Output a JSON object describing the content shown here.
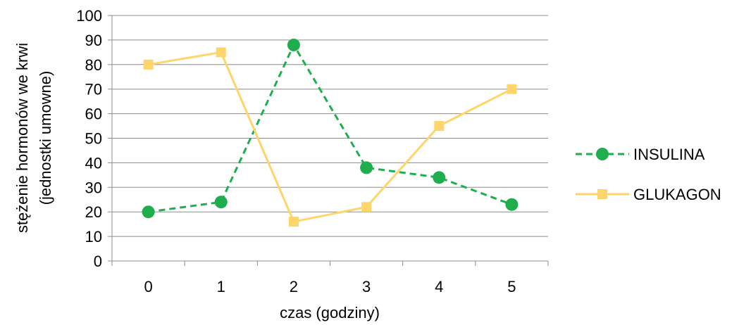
{
  "chart_data": {
    "type": "line",
    "categories": [
      "0",
      "1",
      "2",
      "3",
      "4",
      "5"
    ],
    "series": [
      {
        "name": "INSULINA",
        "values": [
          20,
          24,
          88,
          38,
          34,
          23
        ],
        "color": "#1fae4d",
        "line_style": "dashed",
        "marker": "circle"
      },
      {
        "name": "GLUKAGON",
        "values": [
          80,
          85,
          16,
          22,
          55,
          70
        ],
        "color": "#fdd56b",
        "line_style": "solid",
        "marker": "square"
      }
    ],
    "xlabel": "czas (godziny)",
    "ylabel_lines": [
      "stężenie hormonów we krwi",
      "(jednostki umowne)"
    ],
    "ylim": [
      0,
      100
    ],
    "yticks": [
      "0",
      "10",
      "20",
      "30",
      "40",
      "50",
      "60",
      "70",
      "80",
      "90",
      "100"
    ],
    "grid": "horizontal",
    "legend_position": "right"
  }
}
